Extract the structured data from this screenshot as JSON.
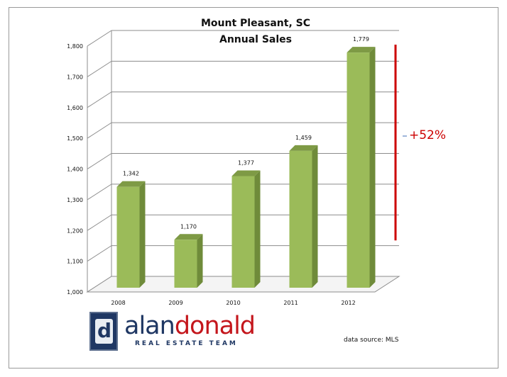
{
  "chart_data": {
    "type": "bar",
    "title": [
      "Mount Pleasant, SC",
      "Annual Sales"
    ],
    "categories": [
      "2008",
      "2009",
      "2010",
      "2011",
      "2012"
    ],
    "values": [
      1342,
      1170,
      1377,
      1459,
      1779
    ],
    "value_labels": [
      "1,342",
      "1,170",
      "1,377",
      "1,459",
      "1,779"
    ],
    "ylim": [
      1000,
      1800
    ],
    "y_ticks": [
      1000,
      1100,
      1200,
      1300,
      1400,
      1500,
      1600,
      1700,
      1800
    ],
    "y_tick_labels": [
      "1,000",
      "1,100",
      "1,200",
      "1,300",
      "1,400",
      "1,500",
      "1,600",
      "1,700",
      "1,800"
    ],
    "grid": true,
    "bar_color": "#9bbb59",
    "annotation": {
      "text": "+52%",
      "color": "#cc0000",
      "from": 1200,
      "to": 1800
    }
  },
  "branding": {
    "name_part1": "alan",
    "name_part2": "donald",
    "tagline": "REAL ESTATE TEAM",
    "logo_letter": "d"
  },
  "source_note": "data source: MLS",
  "colors": {
    "brand_blue": "#1f3763",
    "brand_red": "#c4161c"
  }
}
